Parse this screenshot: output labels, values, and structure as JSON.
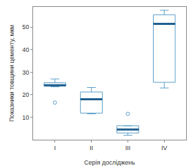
{
  "chart_data": {
    "type": "box",
    "x_label": "Серія досліджень",
    "y_label": "Показники товщини цементу, мкм",
    "categories": [
      "I",
      "II",
      "III",
      "IV"
    ],
    "lower": [
      23.5,
      11.5,
      2,
      23
    ],
    "q1": [
      23.8,
      11.8,
      3,
      25.5
    ],
    "median": [
      24.2,
      18,
      4.5,
      51.5
    ],
    "q3": [
      25.3,
      21.2,
      6.2,
      55.5
    ],
    "upper": [
      27,
      23.2,
      6.2,
      57.5
    ],
    "outliers": [
      [
        16.5
      ],
      [],
      [
        11.5
      ],
      []
    ],
    "color": "#5b9fc9",
    "ylim": [
      0,
      59
    ],
    "yticks": [
      10,
      20,
      30,
      40,
      50
    ],
    "grid": false
  }
}
